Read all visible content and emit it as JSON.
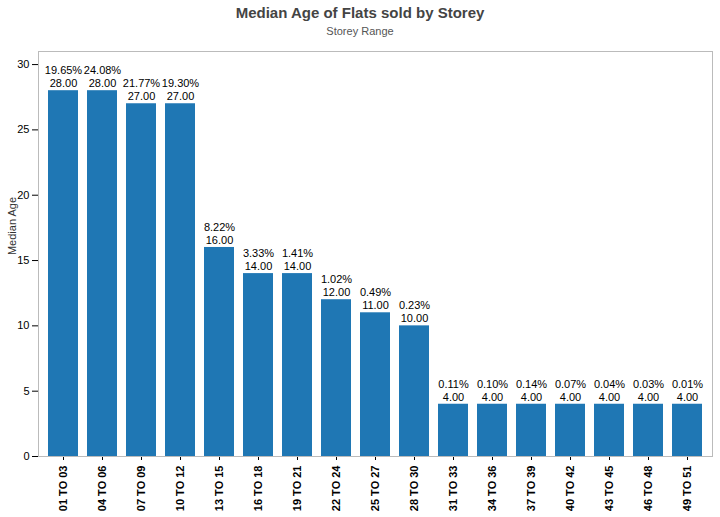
{
  "chart_data": {
    "type": "bar",
    "title": "Median Age of Flats sold by Storey",
    "subtitle": "Storey Range",
    "y_label": "Median Age",
    "categories": [
      "01 TO 03",
      "04 TO 06",
      "07 TO 09",
      "10 TO 12",
      "13 TO 15",
      "16 TO 18",
      "19 TO 21",
      "22 TO 24",
      "25 TO 27",
      "28 TO 30",
      "31 TO 33",
      "34 TO 36",
      "37 TO 39",
      "40 TO 42",
      "43 TO 45",
      "46 TO 48",
      "49 TO 51"
    ],
    "values": [
      28,
      28,
      27,
      27,
      16,
      14,
      14,
      12,
      11,
      10,
      4,
      4,
      4,
      4,
      4,
      4,
      4
    ],
    "value_labels": [
      "28.00",
      "28.00",
      "27.00",
      "27.00",
      "16.00",
      "14.00",
      "14.00",
      "12.00",
      "11.00",
      "10.00",
      "4.00",
      "4.00",
      "4.00",
      "4.00",
      "4.00",
      "4.00",
      "4.00"
    ],
    "share_labels": [
      "19.65%",
      "24.08%",
      "21.77%",
      "19.30%",
      "8.22%",
      "3.33%",
      "1.41%",
      "1.02%",
      "0.49%",
      "0.23%",
      "0.11%",
      "0.10%",
      "0.14%",
      "0.07%",
      "0.04%",
      "0.03%",
      "0.01%"
    ],
    "color": "#1f77b4",
    "ylim": [
      0,
      31
    ],
    "yticks": [
      0,
      5,
      10,
      15,
      20,
      25,
      30
    ],
    "grid": false,
    "data_labels": true
  }
}
